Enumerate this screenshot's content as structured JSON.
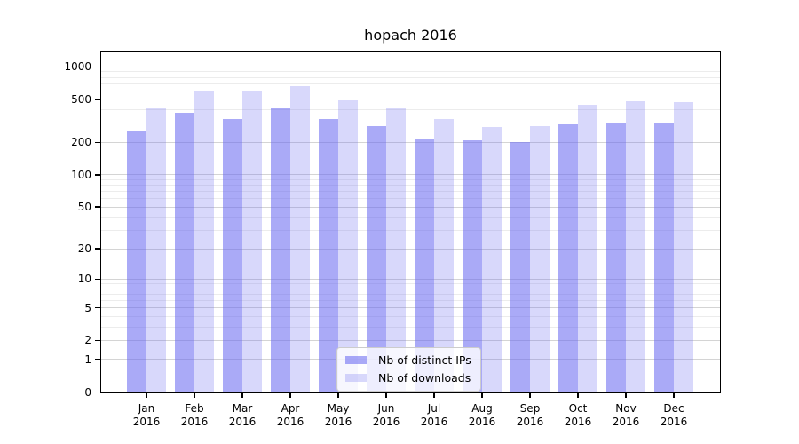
{
  "chart_data": {
    "type": "bar",
    "title": "hopach 2016",
    "categories": [
      "Jan",
      "Feb",
      "Mar",
      "Apr",
      "May",
      "Jun",
      "Jul",
      "Aug",
      "Sep",
      "Oct",
      "Nov",
      "Dec"
    ],
    "x_sublabel": "2016",
    "series": [
      {
        "name": "Nb of distinct IPs",
        "color": "rgba(100,100,240,0.55)",
        "values": [
          255,
          380,
          330,
          420,
          330,
          285,
          215,
          210,
          205,
          295,
          310,
          300
        ]
      },
      {
        "name": "Nb of downloads",
        "color": "rgba(100,100,240,0.25)",
        "values": [
          420,
          600,
          610,
          665,
          495,
          420,
          335,
          280,
          285,
          450,
          490,
          480
        ]
      }
    ],
    "y_axis": {
      "scale": "log10(1+value)",
      "major_ticks": [
        0,
        1,
        2,
        5,
        10,
        20,
        50,
        100,
        200,
        500,
        1000
      ],
      "minor_gridlines": [
        3,
        4,
        6,
        7,
        8,
        9,
        30,
        40,
        60,
        70,
        80,
        90,
        300,
        400,
        600,
        700,
        800,
        900
      ],
      "ylim": [
        0,
        1373
      ],
      "max_log": 3.1377
    },
    "xlabel": "",
    "ylabel": "",
    "grid": true,
    "legend_position": "bottom-center"
  },
  "colors": {
    "bar_dark": "rgba(100,100,240,0.55)",
    "bar_light": "rgba(100,100,240,0.25)",
    "grid_major": "#d4d4d4",
    "grid_minor": "#ececec",
    "axis": "#000000",
    "legend_border": "#cccccc"
  }
}
